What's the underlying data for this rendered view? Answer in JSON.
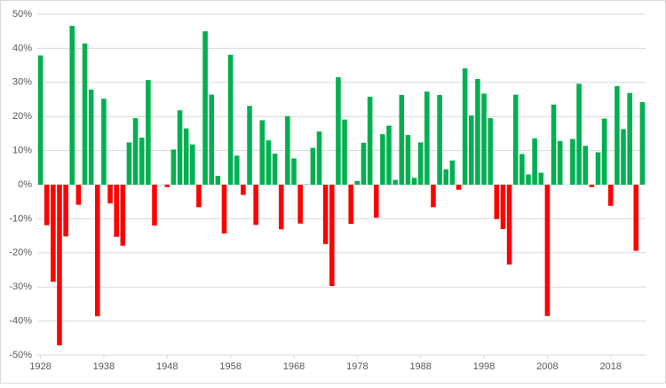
{
  "chart_data": {
    "type": "bar",
    "x": [
      1928,
      1929,
      1930,
      1931,
      1932,
      1933,
      1934,
      1935,
      1936,
      1937,
      1938,
      1939,
      1940,
      1941,
      1942,
      1943,
      1944,
      1945,
      1946,
      1947,
      1948,
      1949,
      1950,
      1951,
      1952,
      1953,
      1954,
      1955,
      1956,
      1957,
      1958,
      1959,
      1960,
      1961,
      1962,
      1963,
      1964,
      1965,
      1966,
      1967,
      1968,
      1969,
      1970,
      1971,
      1972,
      1973,
      1974,
      1975,
      1976,
      1977,
      1978,
      1979,
      1980,
      1981,
      1982,
      1983,
      1984,
      1985,
      1986,
      1987,
      1988,
      1989,
      1990,
      1991,
      1992,
      1993,
      1994,
      1995,
      1996,
      1997,
      1998,
      1999,
      2000,
      2001,
      2002,
      2003,
      2004,
      2005,
      2006,
      2007,
      2008,
      2009,
      2010,
      2011,
      2012,
      2013,
      2014,
      2015,
      2016,
      2017,
      2018,
      2019,
      2020,
      2021,
      2022,
      2023
    ],
    "values": [
      37.9,
      -11.9,
      -28.5,
      -47.1,
      -15.2,
      46.6,
      -5.9,
      41.4,
      27.9,
      -38.6,
      25.2,
      -5.5,
      -15.3,
      -17.9,
      12.4,
      19.5,
      13.8,
      30.7,
      -12.0,
      0.0,
      -0.7,
      10.3,
      21.8,
      16.5,
      11.8,
      -6.6,
      45.0,
      26.4,
      2.6,
      -14.3,
      38.1,
      8.5,
      -3.0,
      23.1,
      -11.8,
      18.9,
      13.0,
      9.1,
      -13.1,
      20.1,
      7.7,
      -11.4,
      0.1,
      10.8,
      15.6,
      -17.4,
      -29.7,
      31.5,
      19.1,
      -11.5,
      1.1,
      12.3,
      25.8,
      -9.7,
      14.8,
      17.3,
      1.4,
      26.3,
      14.6,
      2.0,
      12.4,
      27.3,
      -6.6,
      26.3,
      4.5,
      7.1,
      -1.5,
      34.1,
      20.3,
      31.0,
      26.7,
      19.5,
      -10.1,
      -13.0,
      -23.4,
      26.4,
      9.0,
      3.0,
      13.6,
      3.5,
      -38.5,
      23.5,
      12.8,
      0.0,
      13.4,
      29.6,
      11.4,
      -0.7,
      9.5,
      19.4,
      -6.2,
      28.9,
      16.3,
      26.9,
      -19.4,
      24.2
    ],
    "positive_color": "#00b050",
    "negative_color": "#ff0000",
    "xlim": [
      1927.5,
      2023.5
    ],
    "xticks": [
      1928,
      1938,
      1948,
      1958,
      1968,
      1978,
      1988,
      1998,
      2008,
      2018
    ],
    "ylim": [
      -50,
      50
    ],
    "yticks": [
      {
        "value": -50,
        "label": "-50%"
      },
      {
        "value": -40,
        "label": "-40%"
      },
      {
        "value": -30,
        "label": "-30%"
      },
      {
        "value": -20,
        "label": "-20%"
      },
      {
        "value": -10,
        "label": "-10%"
      },
      {
        "value": 0,
        "label": "0%"
      },
      {
        "value": 10,
        "label": "10%"
      },
      {
        "value": 20,
        "label": "20%"
      },
      {
        "value": 30,
        "label": "30%"
      },
      {
        "value": 40,
        "label": "40%"
      },
      {
        "value": 50,
        "label": "50%"
      }
    ],
    "grid": true
  }
}
